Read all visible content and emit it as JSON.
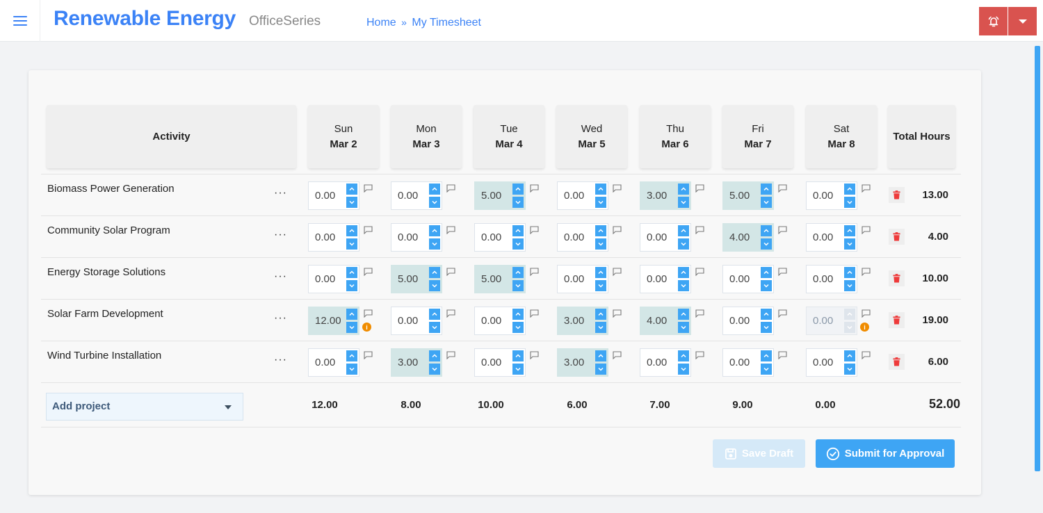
{
  "header": {
    "app_title": "Renewable Energy",
    "app_subtitle": "OfficeSeries",
    "breadcrumb": [
      {
        "label": "Home"
      },
      {
        "label": "My Timesheet"
      }
    ],
    "breadcrumb_separator": "»",
    "icons": {
      "menu": "hamburger-icon",
      "notifications": "bell-alert-icon",
      "dropdown": "caret-down-icon"
    }
  },
  "colors": {
    "brand": "#3b82f6",
    "accent": "#3ea5f4",
    "danger": "#d9534f",
    "filled_cell": "#d3e6e6",
    "warning": "#f08c00"
  },
  "table": {
    "columns": {
      "activity": "Activity",
      "total": "Total Hours",
      "days": [
        {
          "dow": "Sun",
          "date": "Mar 2"
        },
        {
          "dow": "Mon",
          "date": "Mar 3"
        },
        {
          "dow": "Tue",
          "date": "Mar 4"
        },
        {
          "dow": "Wed",
          "date": "Mar 5"
        },
        {
          "dow": "Thu",
          "date": "Mar 6"
        },
        {
          "dow": "Fri",
          "date": "Mar 7"
        },
        {
          "dow": "Sat",
          "date": "Mar 8"
        }
      ]
    },
    "more_label": "···",
    "rows": [
      {
        "name": "Biomass Power Generation",
        "hours": [
          "0.00",
          "0.00",
          "5.00",
          "0.00",
          "3.00",
          "5.00",
          "0.00"
        ],
        "filled": [
          false,
          false,
          true,
          false,
          true,
          true,
          false
        ],
        "warnings": [
          false,
          false,
          false,
          false,
          false,
          false,
          false
        ],
        "disabled": [
          false,
          false,
          false,
          false,
          false,
          false,
          false
        ],
        "total": "13.00"
      },
      {
        "name": "Community Solar Program",
        "hours": [
          "0.00",
          "0.00",
          "0.00",
          "0.00",
          "0.00",
          "4.00",
          "0.00"
        ],
        "filled": [
          false,
          false,
          false,
          false,
          false,
          true,
          false
        ],
        "warnings": [
          false,
          false,
          false,
          false,
          false,
          false,
          false
        ],
        "disabled": [
          false,
          false,
          false,
          false,
          false,
          false,
          false
        ],
        "total": "4.00"
      },
      {
        "name": "Energy Storage Solutions",
        "hours": [
          "0.00",
          "5.00",
          "5.00",
          "0.00",
          "0.00",
          "0.00",
          "0.00"
        ],
        "filled": [
          false,
          true,
          true,
          false,
          false,
          false,
          false
        ],
        "warnings": [
          false,
          false,
          false,
          false,
          false,
          false,
          false
        ],
        "disabled": [
          false,
          false,
          false,
          false,
          false,
          false,
          false
        ],
        "total": "10.00"
      },
      {
        "name": "Solar Farm Development",
        "hours": [
          "12.00",
          "0.00",
          "0.00",
          "3.00",
          "4.00",
          "0.00",
          "0.00"
        ],
        "filled": [
          true,
          false,
          false,
          true,
          true,
          false,
          false
        ],
        "warnings": [
          true,
          false,
          false,
          false,
          false,
          false,
          true
        ],
        "disabled": [
          false,
          false,
          false,
          false,
          false,
          false,
          true
        ],
        "total": "19.00"
      },
      {
        "name": "Wind Turbine Installation",
        "hours": [
          "0.00",
          "3.00",
          "0.00",
          "3.00",
          "0.00",
          "0.00",
          "0.00"
        ],
        "filled": [
          false,
          true,
          false,
          true,
          false,
          false,
          false
        ],
        "warnings": [
          false,
          false,
          false,
          false,
          false,
          false,
          false
        ],
        "disabled": [
          false,
          false,
          false,
          false,
          false,
          false,
          false
        ],
        "total": "6.00"
      }
    ],
    "footer": {
      "add_project_label": "Add project",
      "day_totals": [
        "12.00",
        "8.00",
        "10.00",
        "6.00",
        "7.00",
        "9.00",
        "0.00"
      ],
      "grand_total": "52.00"
    }
  },
  "actions": {
    "save_draft": "Save Draft",
    "submit": "Submit for Approval"
  }
}
